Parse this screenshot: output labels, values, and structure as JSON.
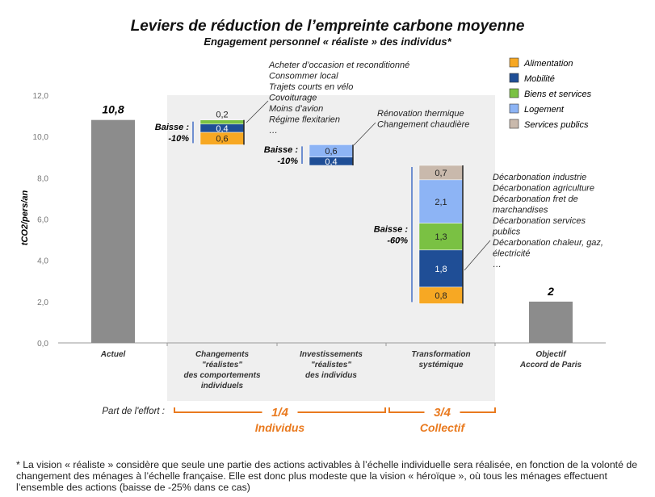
{
  "chart_data": {
    "type": "waterfall-bar",
    "title": "Leviers de réduction de l’empreinte carbone moyenne",
    "subtitle": "Engagement personnel « réaliste » des individus*",
    "ylabel": "tCO2/pers/an",
    "ylim": [
      0,
      12
    ],
    "yticks": [
      "0,0",
      "2,0",
      "4,0",
      "6,0",
      "8,0",
      "10,0",
      "12,0"
    ],
    "categories": [
      {
        "label": [
          "Actuel"
        ]
      },
      {
        "label": [
          "Changements",
          "\"réalistes\"",
          "des comportements",
          "individuels"
        ]
      },
      {
        "label": [
          "Investissements",
          "\"réalistes\"",
          "des individus"
        ]
      },
      {
        "label": [
          "Transformation",
          "systémique"
        ]
      },
      {
        "label": [
          "Objectif",
          "Accord de Paris"
        ]
      }
    ],
    "legend": [
      {
        "name": "Alimentation",
        "color": "#F7A823"
      },
      {
        "name": "Mobilité",
        "color": "#1F4E96"
      },
      {
        "name": "Biens et services",
        "color": "#7AC143"
      },
      {
        "name": "Logement",
        "color": "#8DB4F5"
      },
      {
        "name": "Services publics",
        "color": "#C9B9AC"
      }
    ],
    "totals": [
      {
        "cat": 0,
        "value": 10.8,
        "label": "10,8"
      },
      {
        "cat": 4,
        "value": 2,
        "label": "2"
      }
    ],
    "steps": [
      {
        "cat": 1,
        "top": 10.8,
        "segments": [
          {
            "series": "Biens et services",
            "value": 0.2,
            "label": "0,2"
          },
          {
            "series": "Mobilité",
            "value": 0.4,
            "label": "0,4"
          },
          {
            "series": "Alimentation",
            "value": 0.6,
            "label": "0,6"
          }
        ],
        "baisse": [
          "Baisse :",
          "-10%"
        ],
        "annotation": [
          "Acheter d’occasion et reconditionné",
          "Consommer local",
          "Trajets courts en vélo",
          "Covoiturage",
          "Moins d’avion",
          "Régime flexitarien",
          "…"
        ]
      },
      {
        "cat": 2,
        "top": 9.6,
        "segments": [
          {
            "series": "Logement",
            "value": 0.6,
            "label": "0,6"
          },
          {
            "series": "Mobilité",
            "value": 0.4,
            "label": "0,4"
          }
        ],
        "baisse": [
          "Baisse :",
          "-10%"
        ],
        "annotation": [
          "Rénovation thermique",
          "Changement chaudière"
        ]
      },
      {
        "cat": 3,
        "top": 8.6,
        "segments": [
          {
            "series": "Services publics",
            "value": 0.7,
            "label": "0,7"
          },
          {
            "series": "Logement",
            "value": 2.1,
            "label": "2,1"
          },
          {
            "series": "Biens et services",
            "value": 1.3,
            "label": "1,3"
          },
          {
            "series": "Mobilité",
            "value": 1.8,
            "label": "1,8"
          },
          {
            "series": "Alimentation",
            "value": 0.8,
            "label": "0,8"
          }
        ],
        "baisse": [
          "Baisse :",
          "-60%"
        ],
        "annotation": [
          "Décarbonation industrie",
          "Décarbonation agriculture",
          "Décarbonation fret de",
          "marchandises",
          "Décarbonation services",
          "publics",
          "Décarbonation chaleur, gaz,",
          "électricité",
          "…"
        ]
      }
    ],
    "effort": {
      "label": "Part de l'effort :",
      "groups": [
        {
          "fraction": "1/4",
          "name": "Individus"
        },
        {
          "fraction": "3/4",
          "name": "Collectif"
        }
      ]
    }
  },
  "footnote": "* La vision « réaliste » considère que seule une partie des actions activables à l’échelle individuelle sera réalisée, en fonction de la volonté de changement des ménages à l’échelle française. Elle est donc plus modeste que la vision « héroïque », où tous les ménages effectuent l’ensemble des actions (baisse de -25% dans ce cas)"
}
